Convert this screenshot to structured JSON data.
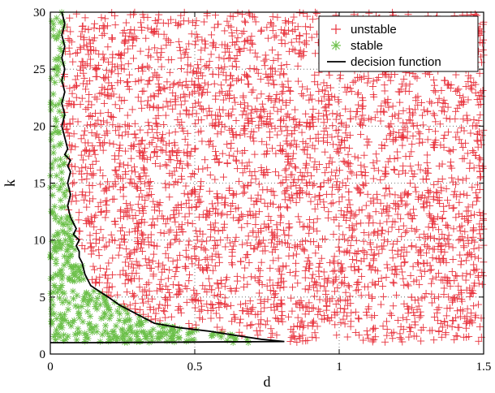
{
  "chart_data": {
    "type": "scatter",
    "xlabel": "d",
    "ylabel": "k",
    "xlim": [
      0,
      1.5
    ],
    "ylim": [
      0,
      30
    ],
    "xticks": [
      0,
      0.5,
      1,
      1.5
    ],
    "xtick_labels": [
      "0",
      "0.5",
      "1",
      "1.5"
    ],
    "yticks": [
      0,
      5,
      10,
      15,
      20,
      25,
      30
    ],
    "ytick_labels": [
      "0",
      "5",
      "10",
      "15",
      "20",
      "25",
      "30"
    ],
    "grid": "dotted",
    "legend_position": "top-right",
    "series": [
      {
        "name": "unstable",
        "marker": "plus",
        "color": "#e8323c",
        "description": "Uniformly sampled (d, k) points lying to the right of / above the decision function, covering d from about 0.05 to 1.5 and k from 1 to 30"
      },
      {
        "name": "stable",
        "marker": "asterisk",
        "color": "#6cc04a",
        "description": "Uniformly sampled (d, k) points lying to the left of / below the decision function"
      },
      {
        "name": "decision function",
        "type": "line",
        "color": "#000000",
        "points": [
          [
            0.04,
            30
          ],
          [
            0.05,
            29
          ],
          [
            0.04,
            28
          ],
          [
            0.05,
            27
          ],
          [
            0.04,
            26
          ],
          [
            0.05,
            25
          ],
          [
            0.04,
            24
          ],
          [
            0.05,
            23
          ],
          [
            0.04,
            22
          ],
          [
            0.05,
            21
          ],
          [
            0.04,
            20
          ],
          [
            0.05,
            19
          ],
          [
            0.06,
            18
          ],
          [
            0.05,
            17.5
          ],
          [
            0.07,
            17
          ],
          [
            0.06,
            16.5
          ],
          [
            0.07,
            16
          ],
          [
            0.06,
            15
          ],
          [
            0.07,
            14
          ],
          [
            0.06,
            13
          ],
          [
            0.07,
            12
          ],
          [
            0.09,
            11
          ],
          [
            0.08,
            10.5
          ],
          [
            0.1,
            10
          ],
          [
            0.09,
            9.5
          ],
          [
            0.1,
            9
          ],
          [
            0.1,
            8.5
          ],
          [
            0.11,
            8
          ],
          [
            0.12,
            7
          ],
          [
            0.14,
            6
          ],
          [
            0.2,
            5
          ],
          [
            0.24,
            4.3
          ],
          [
            0.3,
            3.5
          ],
          [
            0.36,
            2.7
          ],
          [
            0.45,
            2.3
          ],
          [
            0.55,
            2
          ],
          [
            0.65,
            1.6
          ],
          [
            0.73,
            1.3
          ],
          [
            0.81,
            1.1
          ],
          [
            0.15,
            1
          ],
          [
            0,
            1
          ]
        ]
      }
    ]
  }
}
